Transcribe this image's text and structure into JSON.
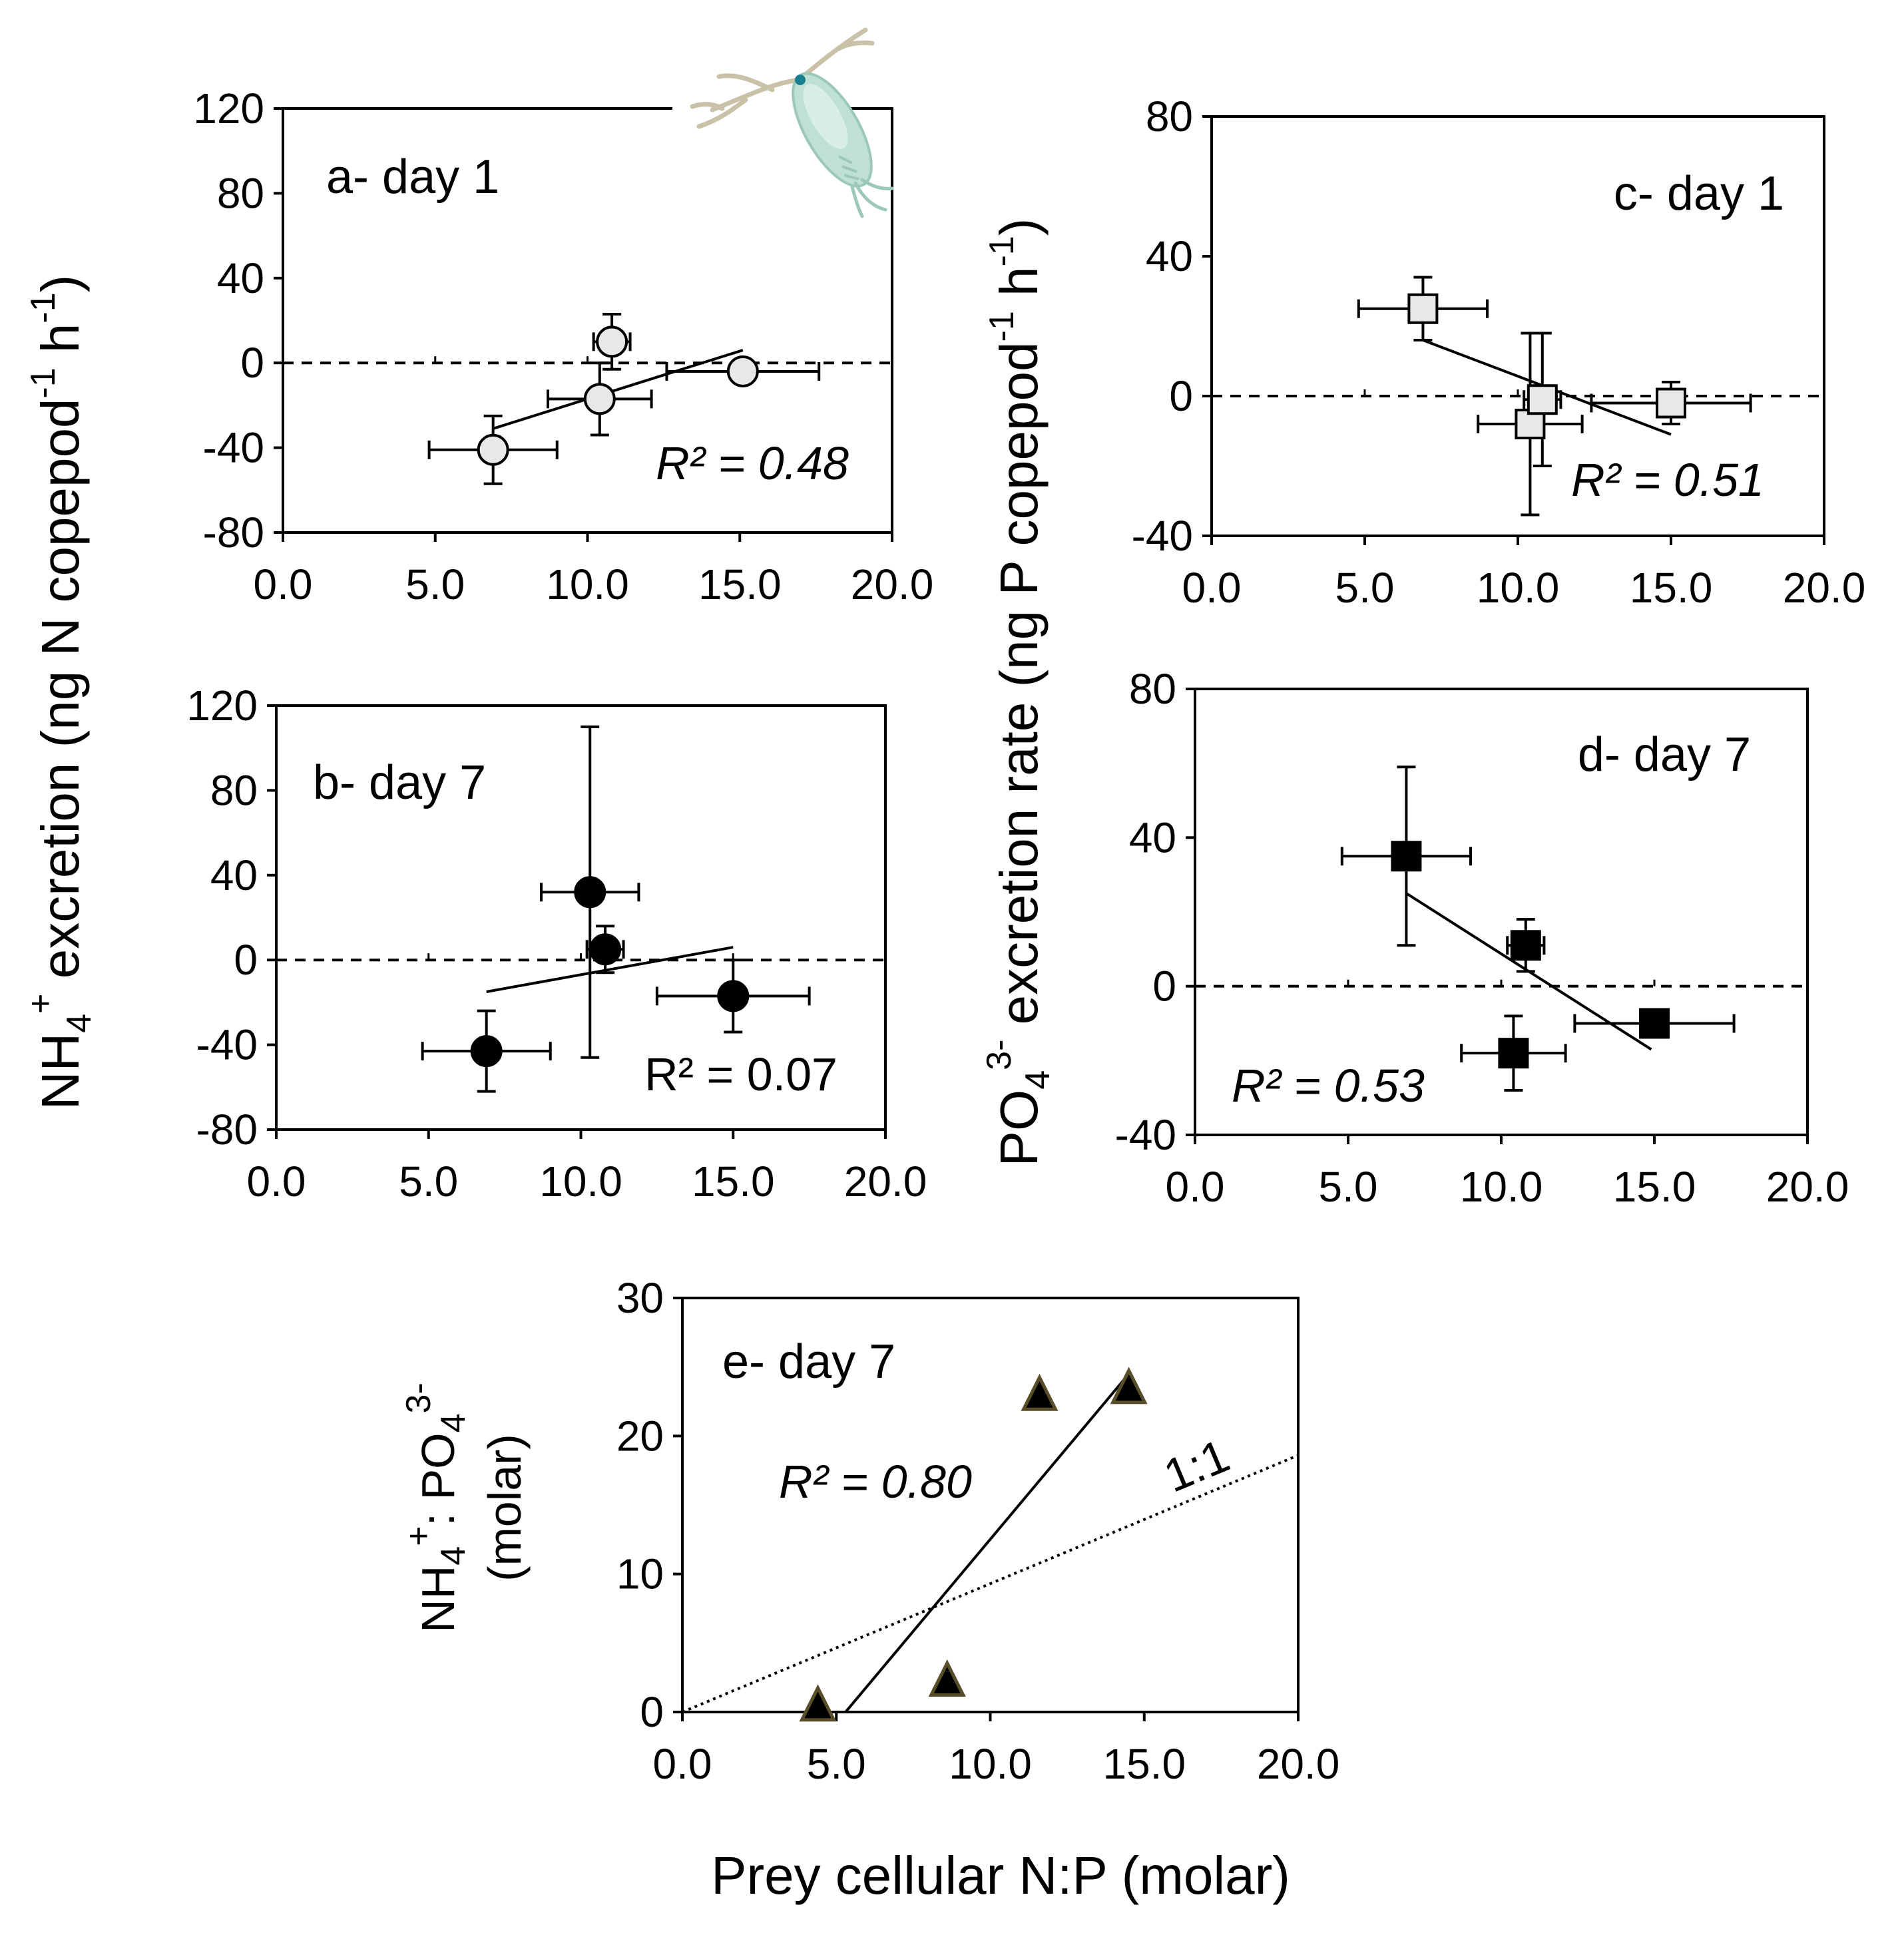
{
  "figure": {
    "y_label_left": {
      "base": "NH",
      "sub": "4",
      "sup": "+",
      "rest": " excretion (ng N copepod",
      "sup2": "-1",
      "rest2": " h",
      "sup3": "-1",
      "close": ")"
    },
    "y_label_right": {
      "base": "PO",
      "sub": "4",
      "sup": "3-",
      "rest": " excretion rate (ng P copepod",
      "sup2": "-1",
      "rest2": " h",
      "sup3": "-1",
      "close": ")"
    },
    "y_label_e_line1": {
      "base": "NH",
      "sub": "4",
      "sup": "+",
      "mid": ": PO",
      "sub2": "4",
      "sup2": "3-"
    },
    "y_label_e_line2": "(molar)",
    "x_label": "Prey cellular N:P (molar)",
    "copepod_icon": "copepod-illustration"
  },
  "chart_data": [
    {
      "id": "a",
      "type": "scatter",
      "title": "a- day 1",
      "r2_label": "R² = 0.48",
      "r2_italic": true,
      "marker": "circle",
      "marker_fill": "#e8e8e8",
      "xlim": [
        0,
        20
      ],
      "ylim": [
        -80,
        120
      ],
      "xticks": [
        "0.0",
        "5.0",
        "10.0",
        "15.0",
        "20.0"
      ],
      "yticks": [
        "-80",
        "-40",
        "0",
        "40",
        "80",
        "120"
      ],
      "points": [
        {
          "x": 6.9,
          "y": -41,
          "xerr": 2.1,
          "yerr": 16
        },
        {
          "x": 10.4,
          "y": -17,
          "xerr": 1.7,
          "yerr": 17
        },
        {
          "x": 10.8,
          "y": 10,
          "xerr": 0.6,
          "yerr": 13
        },
        {
          "x": 15.1,
          "y": -4,
          "xerr": 2.5,
          "yerr": 4
        }
      ],
      "fit": {
        "x": [
          6.9,
          15.1
        ],
        "y": [
          -31,
          6
        ]
      },
      "zero_line": true
    },
    {
      "id": "b",
      "type": "scatter",
      "title": "b- day 7",
      "r2_label": "R² = 0.07",
      "r2_italic": false,
      "marker": "circle",
      "marker_fill": "#000000",
      "xlim": [
        0,
        20
      ],
      "ylim": [
        -80,
        120
      ],
      "xticks": [
        "0.0",
        "5.0",
        "10.0",
        "15.0",
        "20.0"
      ],
      "yticks": [
        "-80",
        "-40",
        "0",
        "40",
        "80",
        "120"
      ],
      "points": [
        {
          "x": 6.9,
          "y": -43,
          "xerr": 2.1,
          "yerr": 19
        },
        {
          "x": 10.3,
          "y": 32,
          "xerr": 1.6,
          "yerr": 78
        },
        {
          "x": 10.8,
          "y": 5,
          "xerr": 0.6,
          "yerr": 11
        },
        {
          "x": 15.0,
          "y": -17,
          "xerr": 2.5,
          "yerr": 17
        }
      ],
      "fit": {
        "x": [
          6.9,
          15.0
        ],
        "y": [
          -15,
          6
        ]
      },
      "zero_line": true
    },
    {
      "id": "c",
      "type": "scatter",
      "title": "c- day 1",
      "r2_label": "R² = 0.51",
      "r2_italic": true,
      "marker": "square",
      "marker_fill": "#e8e8e8",
      "xlim": [
        0,
        20
      ],
      "ylim": [
        -40,
        80
      ],
      "xticks": [
        "0.0",
        "5.0",
        "10.0",
        "15.0",
        "20.0"
      ],
      "yticks": [
        "-40",
        "0",
        "40",
        "80"
      ],
      "points": [
        {
          "x": 6.9,
          "y": 25,
          "xerr": 2.1,
          "yerr": 9
        },
        {
          "x": 10.4,
          "y": -8,
          "xerr": 1.7,
          "yerr": 26
        },
        {
          "x": 10.8,
          "y": -1,
          "xerr": 0.6,
          "yerr": 19
        },
        {
          "x": 15.0,
          "y": -2,
          "xerr": 2.6,
          "yerr": 6
        }
      ],
      "fit": {
        "x": [
          6.9,
          15.0
        ],
        "y": [
          16,
          -11
        ]
      },
      "zero_line": true
    },
    {
      "id": "d",
      "type": "scatter",
      "title": "d- day 7",
      "r2_label": "R² = 0.53",
      "r2_italic": true,
      "marker": "square",
      "marker_fill": "#000000",
      "xlim": [
        0,
        20
      ],
      "ylim": [
        -40,
        80
      ],
      "xticks": [
        "0.0",
        "5.0",
        "10.0",
        "15.0",
        "20.0"
      ],
      "yticks": [
        "-40",
        "0",
        "40",
        "80"
      ],
      "points": [
        {
          "x": 6.9,
          "y": 35,
          "xerr": 2.1,
          "yerr": 24
        },
        {
          "x": 10.4,
          "y": -18,
          "xerr": 1.7,
          "yerr": 10
        },
        {
          "x": 10.8,
          "y": 11,
          "xerr": 0.6,
          "yerr": 7
        },
        {
          "x": 15.0,
          "y": -10,
          "xerr": 2.6,
          "yerr": 0
        }
      ],
      "fit": {
        "x": [
          6.9,
          14.9
        ],
        "y": [
          25,
          -17
        ]
      },
      "zero_line": true
    },
    {
      "id": "e",
      "type": "scatter",
      "title": "e- day 7",
      "r2_label": "R² = 0.80",
      "r2_italic": true,
      "marker": "triangle",
      "marker_fill": "#000000",
      "marker_stroke": "#5a4e2a",
      "xlim": [
        0,
        20
      ],
      "ylim": [
        0,
        30
      ],
      "xticks": [
        "0.0",
        "5.0",
        "10.0",
        "15.0",
        "20.0"
      ],
      "yticks": [
        "0",
        "10",
        "20",
        "30"
      ],
      "points": [
        {
          "x": 4.4,
          "y": 0.3
        },
        {
          "x": 8.6,
          "y": 2.1
        },
        {
          "x": 11.6,
          "y": 22.8
        },
        {
          "x": 14.5,
          "y": 23.3
        }
      ],
      "fit": {
        "x": [
          5.3,
          14.5
        ],
        "y": [
          0,
          24.5
        ]
      },
      "ref_line": {
        "label": "1:1",
        "x": [
          0,
          20
        ],
        "y": [
          0,
          18.6
        ]
      },
      "zero_line": false
    }
  ]
}
